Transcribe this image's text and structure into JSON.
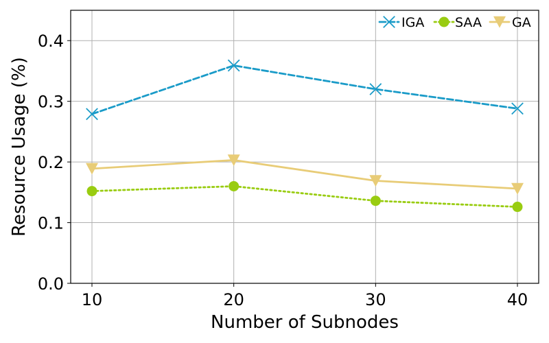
{
  "chart_data": {
    "type": "line",
    "title": "",
    "xlabel": "Number of Subnodes",
    "ylabel": "Resource Usage (%)",
    "x": [
      10,
      20,
      30,
      40
    ],
    "x_tick_labels": [
      "10",
      "20",
      "30",
      "40"
    ],
    "xlim": [
      8.5,
      41.5
    ],
    "ylim": [
      0.0,
      0.45
    ],
    "y_ticks": [
      0.0,
      0.1,
      0.2,
      0.3,
      0.4
    ],
    "y_tick_labels": [
      "0.0",
      "0.1",
      "0.2",
      "0.3",
      "0.4"
    ],
    "grid": true,
    "legend": "top-right",
    "series": [
      {
        "name": "IGA",
        "values": [
          0.279,
          0.359,
          0.32,
          0.288
        ],
        "color": "#1a9bc8",
        "line_style": "dashed",
        "marker": "x"
      },
      {
        "name": "SAA",
        "values": [
          0.152,
          0.16,
          0.136,
          0.126
        ],
        "color": "#99cc11",
        "line_style": "dotted",
        "marker": "circle"
      },
      {
        "name": "GA",
        "values": [
          0.189,
          0.203,
          0.169,
          0.156
        ],
        "color": "#e8cc77",
        "line_style": "solid",
        "marker": "triangle-down"
      }
    ]
  }
}
